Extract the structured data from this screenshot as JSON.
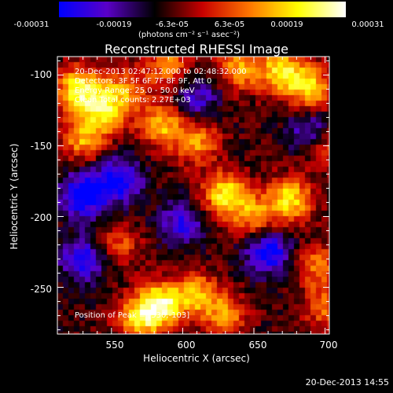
{
  "colorbar": {
    "tick_labels": [
      "-0.00031",
      "-0.00019",
      "-6.3e-05",
      "6.3e-05",
      "0.00019",
      "0.00031"
    ],
    "units": "(photons cm⁻² s⁻¹ asec⁻²)"
  },
  "image": {
    "title": "Reconstructed RHESSI Image",
    "annotations": {
      "time": "20-Dec-2013 02:47:12.000 to 02:48:32.000",
      "detectors": "Detectors: 3F 5F 6F 7F 8F 9F, Att 0",
      "energy": "Energy Range: 25.0 - 50.0 keV",
      "algorithm": "Clean     Total counts: 2.27E+03",
      "peak": "Position of Peak = [530,-103]"
    },
    "xlabel": "Heliocentric X (arcsec)",
    "ylabel": "Heliocentric Y (arcsec)",
    "xticks": [
      "550",
      "600",
      "650",
      "700"
    ],
    "yticks": [
      "-100",
      "-150",
      "-200",
      "-250"
    ]
  },
  "footer": "20-Dec-2013 14:55",
  "chart_data": {
    "type": "heatmap",
    "title": "Reconstructed RHESSI Image",
    "xlabel": "Heliocentric X (arcsec)",
    "ylabel": "Heliocentric Y (arcsec)",
    "xlim": [
      512,
      703
    ],
    "ylim": [
      -283,
      -87
    ],
    "xticks": [
      550,
      600,
      650,
      700
    ],
    "yticks": [
      -100,
      -150,
      -200,
      -250
    ],
    "colorbar_range": [
      -0.00031,
      0.00031
    ],
    "colorbar_ticks": [
      -0.00031,
      -0.00019,
      -6.3e-05,
      6.3e-05,
      0.00019,
      0.00031
    ],
    "colormap": [
      "#0000ff",
      "#5a00c8",
      "#000000",
      "#c80000",
      "#ff7800",
      "#ffff00",
      "#ffffff"
    ],
    "hotspots": [
      {
        "x": 527,
        "y": -110,
        "level": 1.0
      },
      {
        "x": 545,
        "y": -125,
        "level": 0.8
      },
      {
        "x": 530,
        "y": -145,
        "level": 0.7
      },
      {
        "x": 585,
        "y": -135,
        "level": 0.75
      },
      {
        "x": 610,
        "y": -148,
        "level": 0.65
      },
      {
        "x": 560,
        "y": -110,
        "level": 0.55
      },
      {
        "x": 590,
        "y": -93,
        "level": 0.6
      },
      {
        "x": 640,
        "y": -95,
        "level": 0.7
      },
      {
        "x": 670,
        "y": -98,
        "level": 0.9
      },
      {
        "x": 690,
        "y": -110,
        "level": 0.8
      },
      {
        "x": 700,
        "y": -150,
        "level": 0.55
      },
      {
        "x": 630,
        "y": -185,
        "level": 0.95
      },
      {
        "x": 675,
        "y": -188,
        "level": 0.9
      },
      {
        "x": 650,
        "y": -200,
        "level": 0.6
      },
      {
        "x": 555,
        "y": -220,
        "level": 0.45
      },
      {
        "x": 585,
        "y": -262,
        "level": 1.0
      },
      {
        "x": 570,
        "y": -272,
        "level": 0.8
      },
      {
        "x": 610,
        "y": -255,
        "level": 0.7
      },
      {
        "x": 630,
        "y": -270,
        "level": 0.6
      },
      {
        "x": 695,
        "y": -235,
        "level": 0.55
      },
      {
        "x": 700,
        "y": -265,
        "level": 0.5
      }
    ],
    "coldspots": [
      {
        "x": 530,
        "y": -185,
        "level": -0.9
      },
      {
        "x": 530,
        "y": -230,
        "level": -0.7
      },
      {
        "x": 555,
        "y": -175,
        "level": -0.8
      },
      {
        "x": 600,
        "y": -205,
        "level": -0.6
      },
      {
        "x": 660,
        "y": -225,
        "level": -0.8
      },
      {
        "x": 610,
        "y": -115,
        "level": -0.5
      },
      {
        "x": 690,
        "y": -140,
        "level": -0.6
      }
    ]
  }
}
